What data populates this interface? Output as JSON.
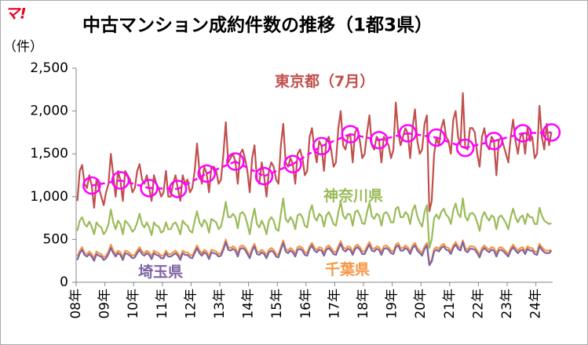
{
  "chart_data": {
    "type": "line",
    "title": "中古マンション成約件数の推移（1都3県）",
    "logo": "マ!",
    "y_label": "（件）",
    "ylim": [
      0,
      2500
    ],
    "yticks": [
      0,
      500,
      {
        "value": 1000,
        "label": "1,000"
      },
      {
        "value": 1500,
        "label": "1,500"
      },
      {
        "value": 2000,
        "label": "2,000"
      },
      {
        "value": 2500,
        "label": "2,500"
      }
    ],
    "grid": false,
    "categories": [
      "08年",
      null,
      null,
      null,
      null,
      null,
      null,
      null,
      null,
      null,
      null,
      null,
      "09年",
      null,
      null,
      null,
      null,
      null,
      null,
      null,
      null,
      null,
      null,
      null,
      "10年",
      null,
      null,
      null,
      null,
      null,
      null,
      null,
      null,
      null,
      null,
      null,
      "11年",
      null,
      null,
      null,
      null,
      null,
      null,
      null,
      null,
      null,
      null,
      null,
      "12年",
      null,
      null,
      null,
      null,
      null,
      null,
      null,
      null,
      null,
      null,
      null,
      "13年",
      null,
      null,
      null,
      null,
      null,
      null,
      null,
      null,
      null,
      null,
      null,
      "14年",
      null,
      null,
      null,
      null,
      null,
      null,
      null,
      null,
      null,
      null,
      null,
      "15年",
      null,
      null,
      null,
      null,
      null,
      null,
      null,
      null,
      null,
      null,
      null,
      "16年",
      null,
      null,
      null,
      null,
      null,
      null,
      null,
      null,
      null,
      null,
      null,
      "17年",
      null,
      null,
      null,
      null,
      null,
      null,
      null,
      null,
      null,
      null,
      null,
      "18年",
      null,
      null,
      null,
      null,
      null,
      null,
      null,
      null,
      null,
      null,
      null,
      "19年",
      null,
      null,
      null,
      null,
      null,
      null,
      null,
      null,
      null,
      null,
      null,
      "20年",
      null,
      null,
      null,
      null,
      null,
      null,
      null,
      null,
      null,
      null,
      null,
      "21年",
      null,
      null,
      null,
      null,
      null,
      null,
      null,
      null,
      null,
      null,
      null,
      "22年",
      null,
      null,
      null,
      null,
      null,
      null,
      null,
      null,
      null,
      null,
      null,
      "23年",
      null,
      null,
      null,
      null,
      null,
      null,
      null,
      null,
      null,
      null,
      null,
      "24年",
      null,
      null,
      null,
      null,
      null,
      null
    ],
    "series": [
      {
        "name": "東京都",
        "color": "#c0504d",
        "marker": "none",
        "line": "solid",
        "values": [
          950,
          1300,
          1370,
          1150,
          1100,
          1250,
          1130,
          870,
          1200,
          1100,
          1000,
          900,
          1050,
          1150,
          1500,
          1250,
          1000,
          1300,
          1190,
          950,
          1300,
          1250,
          1200,
          1050,
          1100,
          1300,
          1380,
          1200,
          1150,
          1250,
          1100,
          950,
          1250,
          1150,
          1100,
          1000,
          1050,
          1300,
          1000,
          1000,
          1150,
          1250,
          1090,
          950,
          1250,
          1150,
          1200,
          1050,
          1100,
          1300,
          1620,
          1300,
          1150,
          1350,
          1270,
          1050,
          1350,
          1350,
          1300,
          1150,
          1200,
          1500,
          1870,
          1400,
          1450,
          1500,
          1410,
          1150,
          1500,
          1550,
          1450,
          1300,
          1050,
          1450,
          1600,
          1200,
          1150,
          1400,
          1240,
          1000,
          1300,
          1400,
          1350,
          1200,
          1150,
          1600,
          1850,
          1400,
          1350,
          1450,
          1380,
          1150,
          1500,
          1550,
          1450,
          1250,
          1300,
          1700,
          1800,
          1550,
          1400,
          1650,
          1590,
          1300,
          1650,
          1700,
          1550,
          1350,
          1400,
          1800,
          2000,
          1600,
          1550,
          1700,
          1730,
          1400,
          1750,
          1800,
          1650,
          1450,
          1500,
          1750,
          1950,
          1600,
          1550,
          1700,
          1660,
          1400,
          1700,
          1650,
          1600,
          1450,
          1550,
          2100,
          1750,
          1600,
          1700,
          1800,
          1740,
          1450,
          1800,
          2020,
          1650,
          1500,
          1550,
          1850,
          1950,
          830,
          950,
          1500,
          1690,
          1600,
          1800,
          1900,
          1700,
          1650,
          1500,
          1900,
          2000,
          1700,
          1600,
          2210,
          1570,
          1550,
          1800,
          1800,
          1750,
          1500,
          1350,
          1700,
          1800,
          1600,
          1550,
          1700,
          1650,
          1250,
          1650,
          1700,
          1600,
          1500,
          1400,
          1700,
          1900,
          1650,
          1500,
          1700,
          1740,
          1500,
          1800,
          1650,
          1700,
          1450,
          1500,
          2060,
          1700,
          1550,
          1850,
          1600,
          1750
        ]
      },
      {
        "name": "神奈川県",
        "color": "#9bbb59",
        "marker": "none",
        "line": "solid",
        "values": [
          600,
          720,
          760,
          680,
          650,
          710,
          650,
          560,
          700,
          660,
          640,
          560,
          600,
          680,
          850,
          700,
          620,
          720,
          680,
          560,
          720,
          690,
          650,
          590,
          620,
          700,
          800,
          680,
          640,
          700,
          640,
          550,
          700,
          660,
          650,
          580,
          600,
          700,
          620,
          620,
          680,
          700,
          640,
          560,
          720,
          680,
          660,
          600,
          580,
          720,
          830,
          700,
          650,
          730,
          690,
          580,
          740,
          720,
          700,
          620,
          650,
          780,
          940,
          760,
          760,
          800,
          760,
          630,
          800,
          820,
          780,
          680,
          560,
          740,
          860,
          680,
          640,
          720,
          660,
          560,
          720,
          760,
          720,
          620,
          600,
          800,
          980,
          740,
          700,
          760,
          720,
          620,
          780,
          800,
          760,
          660,
          640,
          820,
          900,
          760,
          720,
          800,
          770,
          650,
          780,
          820,
          760,
          680,
          660,
          820,
          940,
          780,
          740,
          800,
          790,
          660,
          820,
          840,
          780,
          690,
          680,
          820,
          930,
          770,
          740,
          800,
          780,
          660,
          800,
          820,
          780,
          700,
          700,
          860,
          880,
          760,
          760,
          820,
          790,
          680,
          840,
          900,
          770,
          700,
          650,
          820,
          900,
          400,
          500,
          750,
          790,
          740,
          820,
          860,
          790,
          760,
          680,
          840,
          920,
          800,
          760,
          980,
          770,
          720,
          800,
          810,
          780,
          700,
          600,
          760,
          820,
          760,
          720,
          780,
          760,
          620,
          760,
          780,
          740,
          690,
          620,
          760,
          860,
          760,
          700,
          760,
          780,
          680,
          800,
          760,
          760,
          680,
          680,
          870,
          780,
          720,
          700,
          680,
          690
        ]
      },
      {
        "name": "千葉県",
        "color": "#f79646",
        "marker": "none",
        "line": "solid",
        "values": [
          300,
          370,
          410,
          340,
          330,
          360,
          330,
          280,
          360,
          340,
          330,
          290,
          310,
          360,
          440,
          370,
          330,
          370,
          350,
          290,
          370,
          360,
          340,
          310,
          320,
          370,
          410,
          360,
          340,
          370,
          350,
          300,
          370,
          350,
          340,
          310,
          310,
          370,
          330,
          330,
          350,
          370,
          340,
          290,
          370,
          350,
          350,
          320,
          310,
          370,
          430,
          370,
          340,
          380,
          360,
          300,
          380,
          370,
          360,
          330,
          340,
          410,
          500,
          410,
          400,
          420,
          400,
          330,
          420,
          430,
          410,
          360,
          310,
          400,
          450,
          360,
          350,
          380,
          360,
          310,
          380,
          400,
          380,
          330,
          320,
          410,
          490,
          390,
          370,
          400,
          380,
          330,
          410,
          420,
          400,
          350,
          340,
          420,
          460,
          400,
          380,
          410,
          400,
          340,
          410,
          430,
          400,
          360,
          350,
          420,
          480,
          410,
          390,
          420,
          410,
          350,
          420,
          440,
          410,
          360,
          360,
          420,
          470,
          400,
          390,
          420,
          410,
          350,
          420,
          430,
          410,
          370,
          360,
          440,
          460,
          400,
          400,
          430,
          410,
          360,
          430,
          460,
          400,
          370,
          340,
          420,
          460,
          220,
          260,
          390,
          410,
          390,
          430,
          450,
          410,
          400,
          360,
          430,
          470,
          420,
          400,
          490,
          400,
          380,
          420,
          420,
          410,
          370,
          320,
          400,
          430,
          400,
          380,
          410,
          400,
          330,
          400,
          410,
          390,
          360,
          330,
          400,
          440,
          400,
          370,
          400,
          410,
          360,
          420,
          400,
          400,
          360,
          350,
          450,
          410,
          380,
          370,
          370,
          380
        ]
      },
      {
        "name": "埼玉県",
        "color": "#8064a2",
        "marker": "none",
        "line": "solid",
        "values": [
          260,
          340,
          380,
          320,
          300,
          330,
          300,
          250,
          330,
          310,
          300,
          260,
          280,
          330,
          400,
          340,
          300,
          340,
          320,
          260,
          340,
          330,
          310,
          280,
          290,
          340,
          380,
          330,
          310,
          340,
          320,
          270,
          340,
          320,
          310,
          280,
          280,
          340,
          300,
          300,
          320,
          340,
          310,
          260,
          340,
          320,
          320,
          290,
          280,
          340,
          400,
          340,
          310,
          350,
          330,
          270,
          350,
          340,
          330,
          300,
          310,
          380,
          470,
          380,
          370,
          390,
          370,
          300,
          390,
          400,
          380,
          330,
          280,
          370,
          420,
          330,
          320,
          350,
          330,
          280,
          350,
          370,
          350,
          300,
          290,
          380,
          460,
          360,
          340,
          370,
          350,
          300,
          380,
          390,
          370,
          320,
          310,
          390,
          430,
          370,
          350,
          380,
          370,
          310,
          380,
          400,
          370,
          330,
          320,
          390,
          450,
          380,
          360,
          390,
          380,
          320,
          390,
          410,
          380,
          330,
          330,
          390,
          440,
          370,
          360,
          390,
          380,
          320,
          390,
          400,
          380,
          340,
          330,
          410,
          430,
          370,
          370,
          400,
          380,
          330,
          400,
          430,
          370,
          340,
          310,
          390,
          430,
          200,
          240,
          360,
          380,
          360,
          400,
          420,
          380,
          370,
          330,
          400,
          440,
          390,
          370,
          470,
          370,
          350,
          390,
          390,
          380,
          340,
          290,
          370,
          400,
          370,
          350,
          380,
          370,
          300,
          370,
          380,
          360,
          330,
          300,
          370,
          410,
          370,
          340,
          370,
          380,
          330,
          390,
          370,
          370,
          330,
          320,
          420,
          380,
          350,
          340,
          340,
          370
        ]
      },
      {
        "name": "（7月）",
        "color": "#ff00ff",
        "marker": "circle",
        "line": "dashed",
        "values": [
          null,
          null,
          null,
          null,
          null,
          null,
          1130,
          null,
          null,
          null,
          null,
          null,
          null,
          null,
          null,
          null,
          null,
          null,
          1190,
          null,
          null,
          null,
          null,
          null,
          null,
          null,
          null,
          null,
          null,
          null,
          1100,
          null,
          null,
          null,
          null,
          null,
          null,
          null,
          null,
          null,
          null,
          null,
          1090,
          null,
          null,
          null,
          null,
          null,
          null,
          null,
          null,
          null,
          null,
          null,
          1270,
          null,
          null,
          null,
          null,
          null,
          null,
          null,
          null,
          null,
          null,
          null,
          1410,
          null,
          null,
          null,
          null,
          null,
          null,
          null,
          null,
          null,
          null,
          null,
          1240,
          null,
          null,
          null,
          null,
          null,
          null,
          null,
          null,
          null,
          null,
          null,
          1380,
          null,
          null,
          null,
          null,
          null,
          null,
          null,
          null,
          null,
          null,
          null,
          1590,
          null,
          null,
          null,
          null,
          null,
          null,
          null,
          null,
          null,
          null,
          null,
          1730,
          null,
          null,
          null,
          null,
          null,
          null,
          null,
          null,
          null,
          null,
          null,
          1660,
          null,
          null,
          null,
          null,
          null,
          null,
          null,
          null,
          null,
          null,
          null,
          1740,
          null,
          null,
          null,
          null,
          null,
          null,
          null,
          null,
          null,
          null,
          null,
          1690,
          null,
          null,
          null,
          null,
          null,
          null,
          null,
          null,
          null,
          null,
          null,
          1570,
          null,
          null,
          null,
          null,
          null,
          null,
          null,
          null,
          null,
          null,
          null,
          1650,
          null,
          null,
          null,
          null,
          null,
          null,
          null,
          null,
          null,
          null,
          null,
          1740,
          null,
          null,
          null,
          null,
          null,
          null,
          null,
          null,
          null,
          null,
          null,
          1750
        ]
      }
    ]
  }
}
